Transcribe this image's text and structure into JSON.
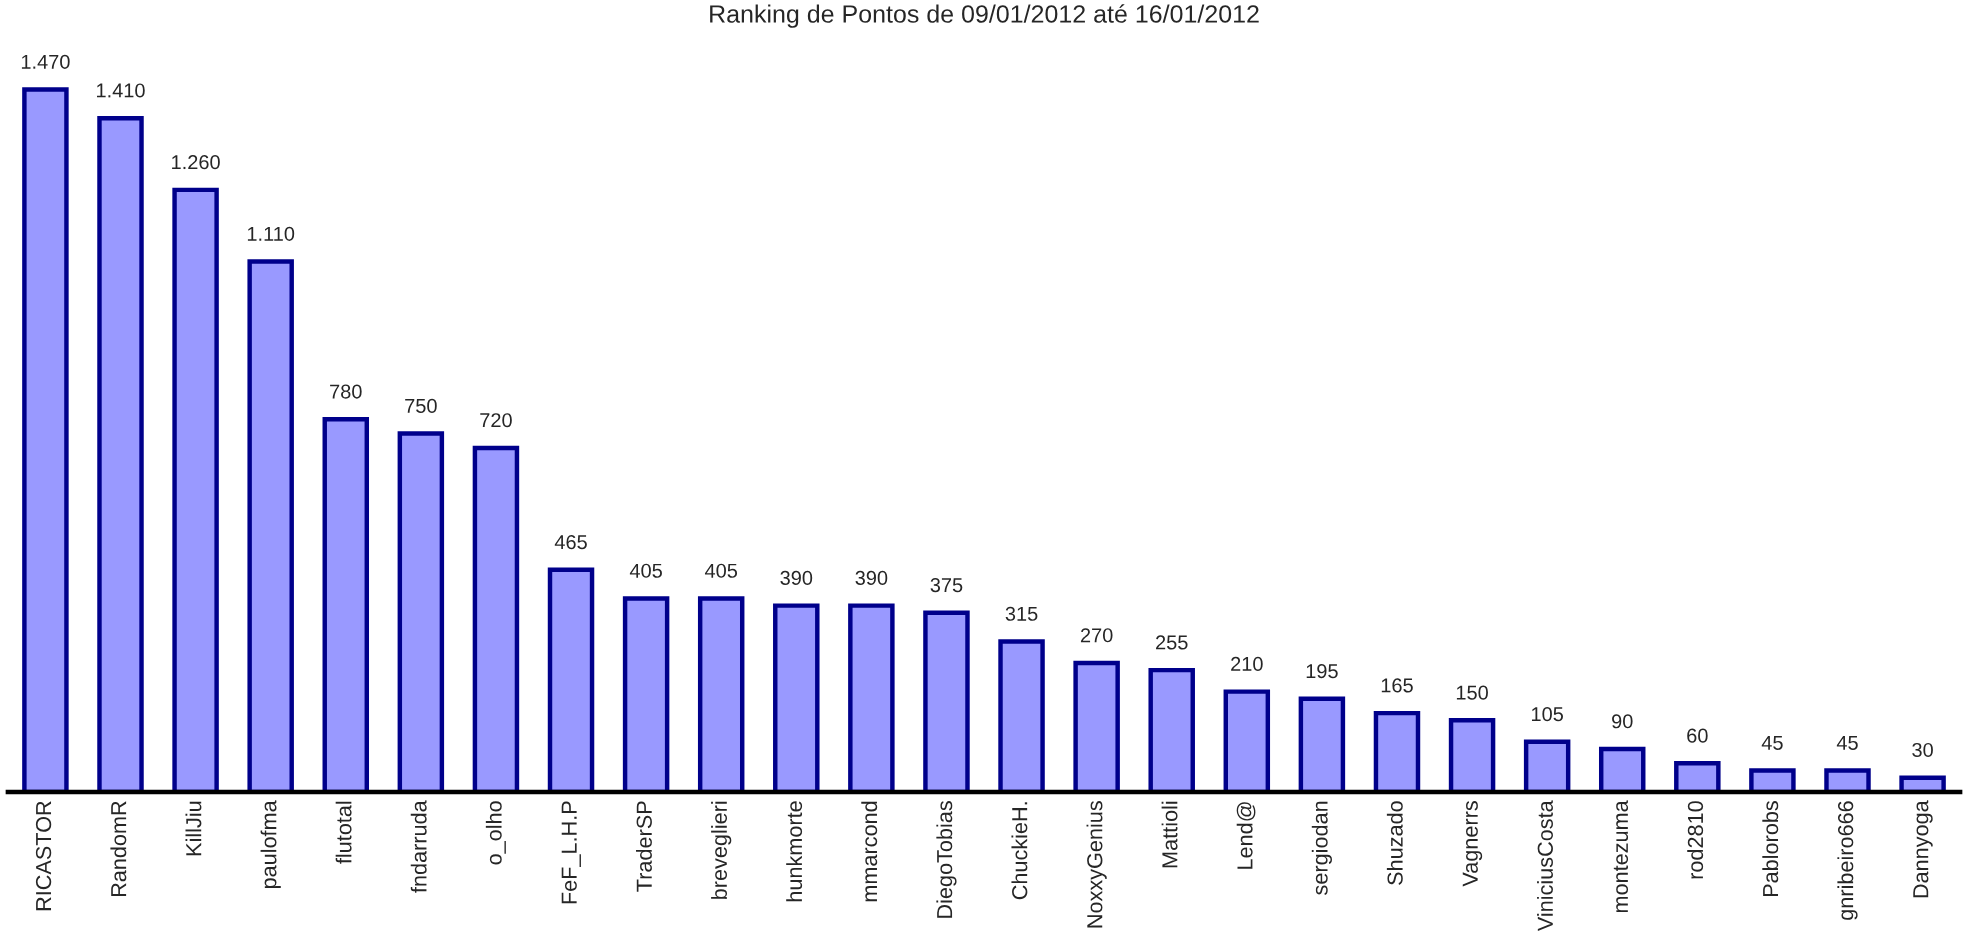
{
  "chart_data": {
    "type": "bar",
    "title": "Ranking de Pontos de 09/01/2012 até 16/01/2012",
    "categories": [
      "RICASTOR",
      "RandomR",
      "KillJiu",
      "paulofma",
      "flutotal",
      "fndarruda",
      "o_olho",
      "FeF_L.H.P",
      "TraderSP",
      "breveglieri",
      "hunkmorte",
      "mmarcond",
      "DiegoTobias",
      "ChuckieH.",
      "NoxxyGenius",
      "Mattioli",
      "Lend@",
      "sergiodan",
      "Shuzado",
      "Vagnerrs",
      "ViniciusCosta",
      "montezuma",
      "rod2810",
      "Pablorobs",
      "gnribeiro666",
      "Dannyoga"
    ],
    "series": [
      {
        "color": "#9999ff",
        "values": [
          1470,
          1410,
          1260,
          1110,
          780,
          750,
          720,
          465,
          405,
          405,
          390,
          390,
          375,
          315,
          270,
          255,
          210,
          195,
          165,
          150,
          105,
          90,
          60,
          45,
          45,
          30
        ],
        "value_labels": [
          "1.470",
          "1.410",
          "1.260",
          "1.110",
          "780",
          "750",
          "720",
          "465",
          "405",
          "405",
          "390",
          "390",
          "375",
          "315",
          "270",
          "255",
          "210",
          "195",
          "165",
          "150",
          "105",
          "90",
          "60",
          "45",
          "45",
          "30"
        ]
      }
    ],
    "tick_labels": "x",
    "grid": false
  }
}
